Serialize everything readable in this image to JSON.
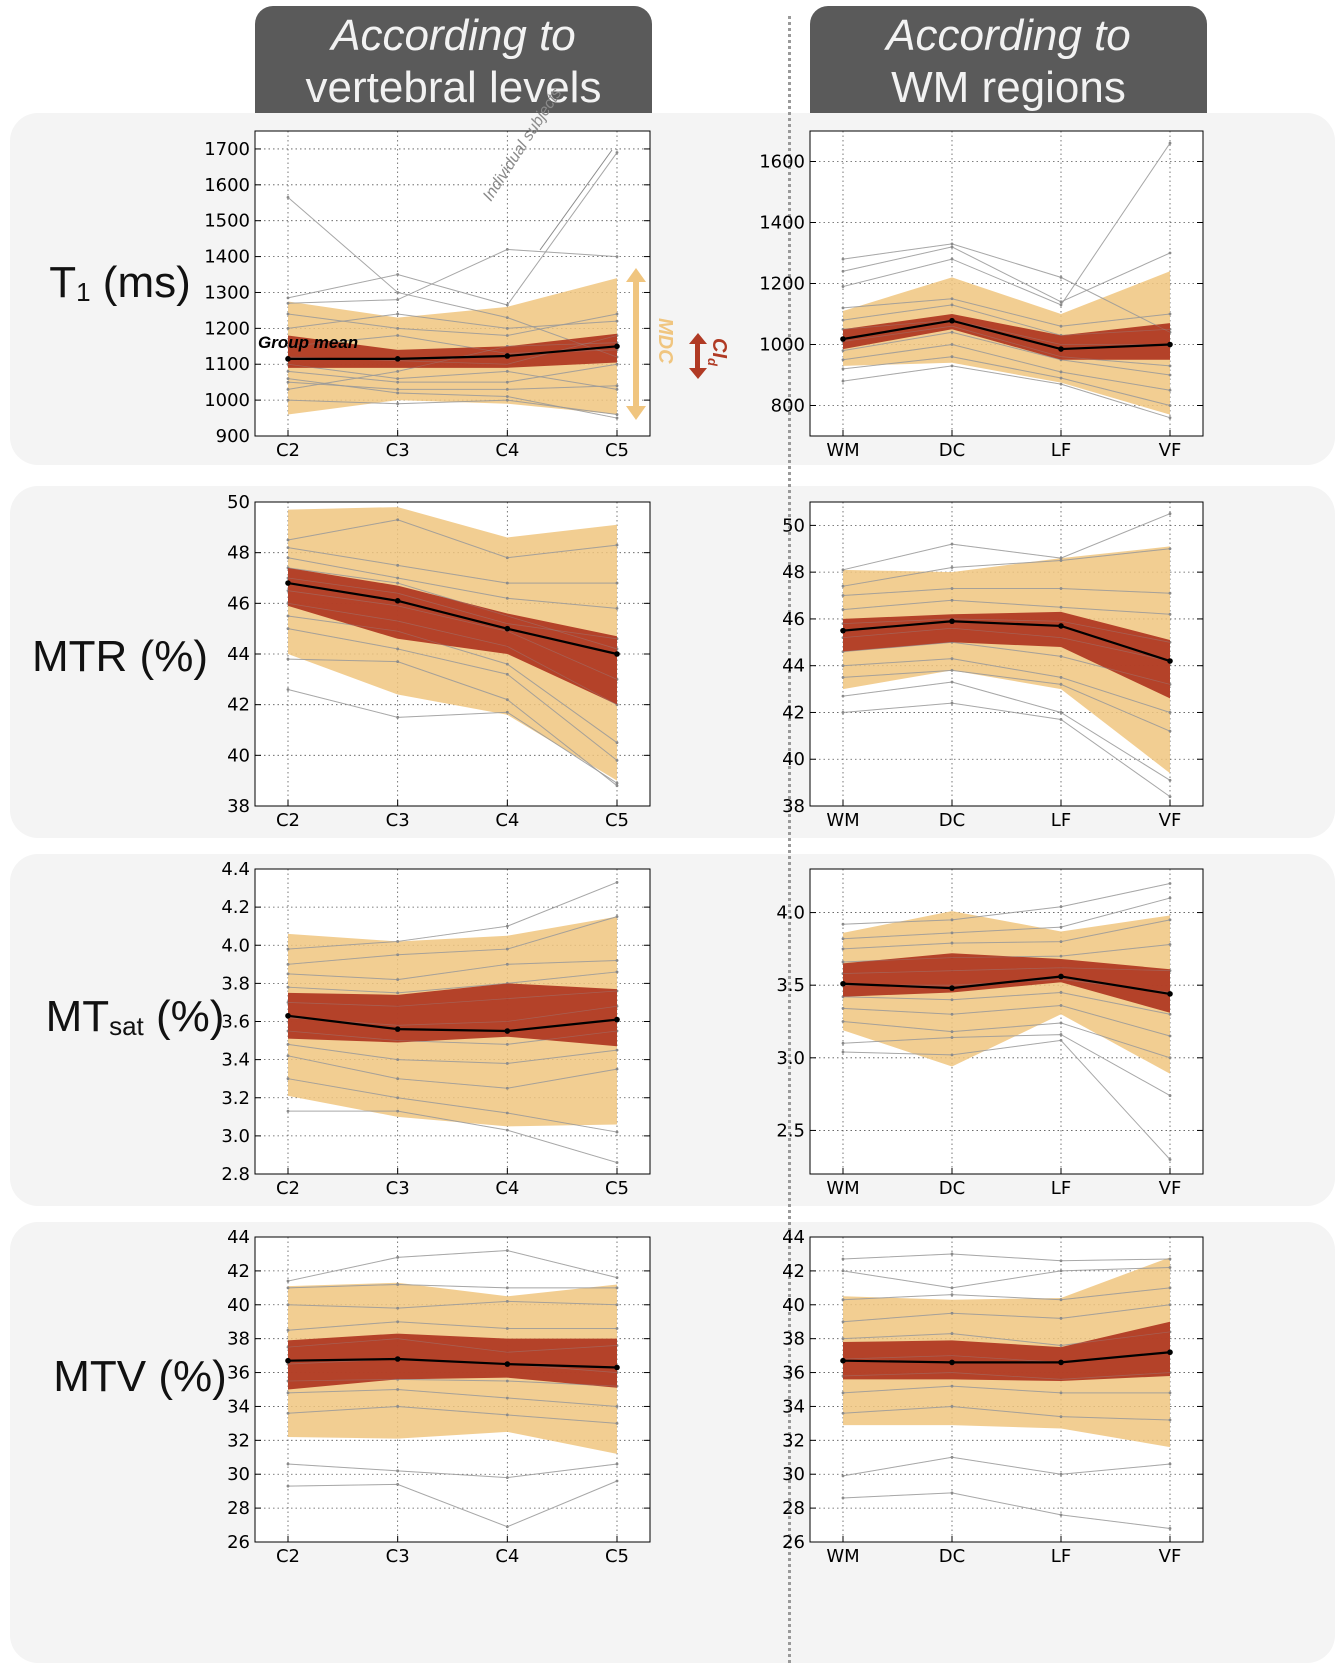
{
  "headers": {
    "left": {
      "line1": "According to",
      "line2": "vertebral levels"
    },
    "right": {
      "line1": "According to",
      "line2": "WM regions"
    }
  },
  "rows": [
    {
      "label": "T",
      "label_sub": "1",
      "label_suffix": " (ms)"
    },
    {
      "label": "MTR (%)",
      "label_sub": "",
      "label_suffix": ""
    },
    {
      "label": "MT",
      "label_sub": "sat",
      "label_suffix": " (%)"
    },
    {
      "label": "MTV (%)",
      "label_sub": "",
      "label_suffix": ""
    }
  ],
  "annotations": {
    "group_mean": "Group mean",
    "individual_subjects": "Individual subjects",
    "mdc": "MDC",
    "ci": "CI",
    "ci_sub": "d"
  },
  "colors": {
    "mdc_band": "#f0c57f",
    "ci_band": "#b03a24",
    "mean_line": "#000000",
    "subject_line": "#9a9a9a",
    "plot_bg": "#ffffff"
  },
  "chart_data": [
    {
      "id": "t1-vert",
      "type": "line",
      "categories": [
        "C2",
        "C3",
        "C4",
        "C5"
      ],
      "ylim": [
        900,
        1750
      ],
      "yticks": [
        900,
        1000,
        1100,
        1200,
        1300,
        1400,
        1500,
        1600,
        1700
      ],
      "mean": [
        1115,
        1115,
        1123,
        1150
      ],
      "ci_band": {
        "upper": [
          1180,
          1140,
          1150,
          1185
        ],
        "lower": [
          1090,
          1090,
          1090,
          1105
        ]
      },
      "mdc_band": {
        "upper": [
          1275,
          1230,
          1260,
          1340
        ],
        "lower": [
          960,
          1000,
          990,
          960
        ]
      },
      "subjects": [
        [
          1565,
          1300,
          1230,
          1120
        ],
        [
          1285,
          1350,
          1265,
          1690
        ],
        [
          1270,
          1280,
          1420,
          1400
        ],
        [
          1240,
          1200,
          1180,
          1240
        ],
        [
          1200,
          1240,
          1200,
          1220
        ],
        [
          1150,
          1180,
          1130,
          1140
        ],
        [
          1120,
          1110,
          1100,
          1180
        ],
        [
          1100,
          1060,
          1080,
          1030
        ],
        [
          1080,
          1050,
          1050,
          1100
        ],
        [
          1050,
          1030,
          1030,
          1040
        ],
        [
          1030,
          1080,
          1150,
          1160
        ],
        [
          1000,
          990,
          1000,
          960
        ],
        [
          1060,
          1020,
          1010,
          950
        ]
      ]
    },
    {
      "id": "t1-wm",
      "type": "line",
      "categories": [
        "WM",
        "DC",
        "LF",
        "VF"
      ],
      "ylim": [
        700,
        1700
      ],
      "yticks": [
        800,
        1000,
        1200,
        1400,
        1600
      ],
      "mean": [
        1018,
        1078,
        985,
        1000
      ],
      "ci_band": {
        "upper": [
          1050,
          1100,
          1030,
          1070
        ],
        "lower": [
          985,
          1050,
          950,
          950
        ]
      },
      "mdc_band": {
        "upper": [
          1110,
          1220,
          1100,
          1240
        ],
        "lower": [
          930,
          940,
          875,
          770
        ]
      },
      "subjects": [
        [
          1280,
          1330,
          1220,
          1040
        ],
        [
          1240,
          1320,
          1140,
          1300
        ],
        [
          1190,
          1280,
          1130,
          1660
        ],
        [
          1120,
          1150,
          1060,
          1100
        ],
        [
          1080,
          1130,
          1030,
          1050
        ],
        [
          1050,
          1080,
          1000,
          1000
        ],
        [
          1010,
          1060,
          960,
          930
        ],
        [
          980,
          1040,
          950,
          900
        ],
        [
          950,
          1000,
          910,
          850
        ],
        [
          920,
          960,
          890,
          800
        ],
        [
          880,
          930,
          870,
          760
        ]
      ]
    },
    {
      "id": "mtr-vert",
      "type": "line",
      "categories": [
        "C2",
        "C3",
        "C4",
        "C5"
      ],
      "ylim": [
        38,
        50
      ],
      "yticks": [
        38,
        40,
        42,
        44,
        46,
        48,
        50
      ],
      "mean": [
        46.8,
        46.1,
        45.0,
        44.0
      ],
      "ci_band": {
        "upper": [
          47.4,
          46.7,
          45.6,
          44.7
        ],
        "lower": [
          45.9,
          44.6,
          44.0,
          42.0
        ]
      },
      "mdc_band": {
        "upper": [
          49.7,
          49.8,
          48.6,
          49.1
        ],
        "lower": [
          44.0,
          42.4,
          41.6,
          39.0
        ]
      },
      "subjects": [
        [
          48.5,
          49.3,
          47.8,
          48.3
        ],
        [
          48.2,
          47.5,
          46.8,
          46.8
        ],
        [
          47.8,
          47.0,
          46.2,
          45.8
        ],
        [
          47.4,
          46.8,
          45.5,
          44.2
        ],
        [
          47.0,
          46.4,
          45.2,
          44.6
        ],
        [
          46.5,
          45.9,
          44.9,
          43.0
        ],
        [
          46.0,
          45.3,
          44.3,
          42.0
        ],
        [
          45.5,
          44.9,
          43.6,
          40.5
        ],
        [
          45.0,
          44.2,
          43.2,
          39.8
        ],
        [
          43.8,
          43.7,
          42.2,
          38.8
        ],
        [
          42.6,
          41.5,
          41.7,
          38.9
        ]
      ]
    },
    {
      "id": "mtr-wm",
      "type": "line",
      "categories": [
        "WM",
        "DC",
        "LF",
        "VF"
      ],
      "ylim": [
        38,
        51
      ],
      "yticks": [
        38,
        40,
        42,
        44,
        46,
        48,
        50
      ],
      "mean": [
        45.5,
        45.9,
        45.7,
        44.2
      ],
      "ci_band": {
        "upper": [
          46.0,
          46.2,
          46.3,
          45.1
        ],
        "lower": [
          44.6,
          45.0,
          44.8,
          42.6
        ]
      },
      "mdc_band": {
        "upper": [
          48.1,
          48.0,
          48.6,
          49.1
        ],
        "lower": [
          43.0,
          43.8,
          43.0,
          39.4
        ]
      },
      "subjects": [
        [
          48.1,
          49.2,
          48.6,
          50.5
        ],
        [
          47.4,
          48.2,
          48.5,
          49.0
        ],
        [
          47.0,
          47.3,
          47.3,
          47.1
        ],
        [
          46.4,
          46.8,
          46.5,
          46.2
        ],
        [
          45.8,
          46.0,
          45.9,
          45.0
        ],
        [
          45.2,
          45.6,
          45.2,
          44.2
        ],
        [
          44.6,
          45.0,
          44.4,
          43.2
        ],
        [
          44.0,
          44.3,
          43.5,
          42.0
        ],
        [
          43.5,
          43.8,
          43.2,
          41.2
        ],
        [
          42.7,
          43.3,
          42.0,
          39.1
        ],
        [
          42.0,
          42.4,
          41.7,
          38.4
        ]
      ]
    },
    {
      "id": "mtsat-vert",
      "type": "line",
      "categories": [
        "C2",
        "C3",
        "C4",
        "C5"
      ],
      "ylim": [
        2.8,
        4.4
      ],
      "yticks": [
        2.8,
        3.0,
        3.2,
        3.4,
        3.6,
        3.8,
        4.0,
        4.2,
        4.4
      ],
      "mean": [
        3.63,
        3.56,
        3.55,
        3.61
      ],
      "ci_band": {
        "upper": [
          3.75,
          3.74,
          3.8,
          3.77
        ],
        "lower": [
          3.51,
          3.49,
          3.52,
          3.47
        ]
      },
      "mdc_band": {
        "upper": [
          4.06,
          4.02,
          4.05,
          4.15
        ],
        "lower": [
          3.21,
          3.1,
          3.05,
          3.06
        ]
      },
      "subjects": [
        [
          3.98,
          4.02,
          4.1,
          4.33
        ],
        [
          3.9,
          3.95,
          3.98,
          4.15
        ],
        [
          3.85,
          3.82,
          3.9,
          3.92
        ],
        [
          3.78,
          3.75,
          3.8,
          3.86
        ],
        [
          3.7,
          3.68,
          3.72,
          3.76
        ],
        [
          3.62,
          3.58,
          3.6,
          3.68
        ],
        [
          3.55,
          3.5,
          3.48,
          3.55
        ],
        [
          3.48,
          3.4,
          3.38,
          3.45
        ],
        [
          3.42,
          3.3,
          3.25,
          3.35
        ],
        [
          3.3,
          3.2,
          3.12,
          3.02
        ],
        [
          3.13,
          3.13,
          3.03,
          2.86
        ]
      ]
    },
    {
      "id": "mtsat-wm",
      "type": "line",
      "categories": [
        "WM",
        "DC",
        "LF",
        "VF"
      ],
      "ylim": [
        2.2,
        4.3
      ],
      "yticks": [
        2.5,
        3.0,
        3.5,
        4.0
      ],
      "mean": [
        3.51,
        3.48,
        3.56,
        3.44
      ],
      "ci_band": {
        "upper": [
          3.65,
          3.72,
          3.68,
          3.61
        ],
        "lower": [
          3.42,
          3.45,
          3.52,
          3.31
        ]
      },
      "mdc_band": {
        "upper": [
          3.86,
          4.01,
          3.87,
          3.98
        ],
        "lower": [
          3.19,
          2.94,
          3.3,
          2.89
        ]
      },
      "subjects": [
        [
          3.92,
          3.95,
          4.04,
          4.2
        ],
        [
          3.82,
          3.86,
          3.9,
          4.1
        ],
        [
          3.75,
          3.79,
          3.8,
          3.95
        ],
        [
          3.66,
          3.69,
          3.7,
          3.78
        ],
        [
          3.58,
          3.6,
          3.62,
          3.6
        ],
        [
          3.5,
          3.5,
          3.54,
          3.45
        ],
        [
          3.42,
          3.4,
          3.45,
          3.3
        ],
        [
          3.34,
          3.3,
          3.36,
          3.15
        ],
        [
          3.25,
          3.18,
          3.24,
          3.0
        ],
        [
          3.1,
          3.14,
          3.16,
          2.74
        ],
        [
          3.04,
          3.02,
          3.12,
          2.3
        ]
      ]
    },
    {
      "id": "mtv-vert",
      "type": "line",
      "categories": [
        "C2",
        "C3",
        "C4",
        "C5"
      ],
      "ylim": [
        26,
        44
      ],
      "yticks": [
        26,
        28,
        30,
        32,
        34,
        36,
        38,
        40,
        42,
        44
      ],
      "mean": [
        36.7,
        36.8,
        36.5,
        36.3
      ],
      "ci_band": {
        "upper": [
          37.9,
          38.3,
          38.0,
          38.0
        ],
        "lower": [
          35.0,
          35.6,
          35.7,
          35.1
        ]
      },
      "mdc_band": {
        "upper": [
          41.1,
          41.3,
          40.5,
          41.2
        ],
        "lower": [
          32.2,
          32.1,
          32.5,
          31.2
        ]
      },
      "subjects": [
        [
          41.4,
          42.8,
          43.2,
          41.6
        ],
        [
          41.0,
          41.2,
          41.0,
          41.0
        ],
        [
          40.0,
          39.8,
          40.2,
          40.0
        ],
        [
          38.5,
          39.0,
          38.6,
          38.6
        ],
        [
          37.5,
          38.0,
          37.2,
          37.6
        ],
        [
          36.5,
          36.8,
          36.5,
          36.0
        ],
        [
          35.5,
          35.6,
          35.5,
          35.2
        ],
        [
          34.8,
          35.0,
          34.5,
          34.0
        ],
        [
          33.6,
          34.0,
          33.5,
          33.0
        ],
        [
          30.6,
          30.2,
          29.8,
          30.6
        ],
        [
          29.3,
          29.4,
          26.9,
          29.6
        ]
      ]
    },
    {
      "id": "mtv-wm",
      "type": "line",
      "categories": [
        "WM",
        "DC",
        "LF",
        "VF"
      ],
      "ylim": [
        26,
        44
      ],
      "yticks": [
        26,
        28,
        30,
        32,
        34,
        36,
        38,
        40,
        42,
        44
      ],
      "mean": [
        36.7,
        36.6,
        36.6,
        37.2
      ],
      "ci_band": {
        "upper": [
          37.8,
          37.9,
          37.5,
          39.0
        ],
        "lower": [
          35.6,
          35.6,
          35.5,
          35.8
        ]
      },
      "mdc_band": {
        "upper": [
          40.5,
          40.3,
          40.4,
          42.8
        ],
        "lower": [
          32.9,
          32.9,
          32.7,
          31.6
        ]
      },
      "subjects": [
        [
          42.7,
          43.0,
          42.6,
          42.7
        ],
        [
          42.0,
          41.0,
          42.0,
          42.2
        ],
        [
          40.3,
          40.6,
          40.3,
          41.0
        ],
        [
          39.0,
          39.5,
          39.2,
          40.0
        ],
        [
          38.0,
          38.3,
          37.6,
          38.4
        ],
        [
          36.8,
          37.0,
          36.6,
          37.2
        ],
        [
          35.8,
          36.0,
          35.6,
          36.0
        ],
        [
          34.8,
          35.2,
          34.8,
          34.8
        ],
        [
          33.6,
          34.0,
          33.4,
          33.2
        ],
        [
          29.9,
          31.0,
          30.0,
          30.6
        ],
        [
          28.6,
          28.9,
          27.6,
          26.8
        ]
      ]
    }
  ]
}
